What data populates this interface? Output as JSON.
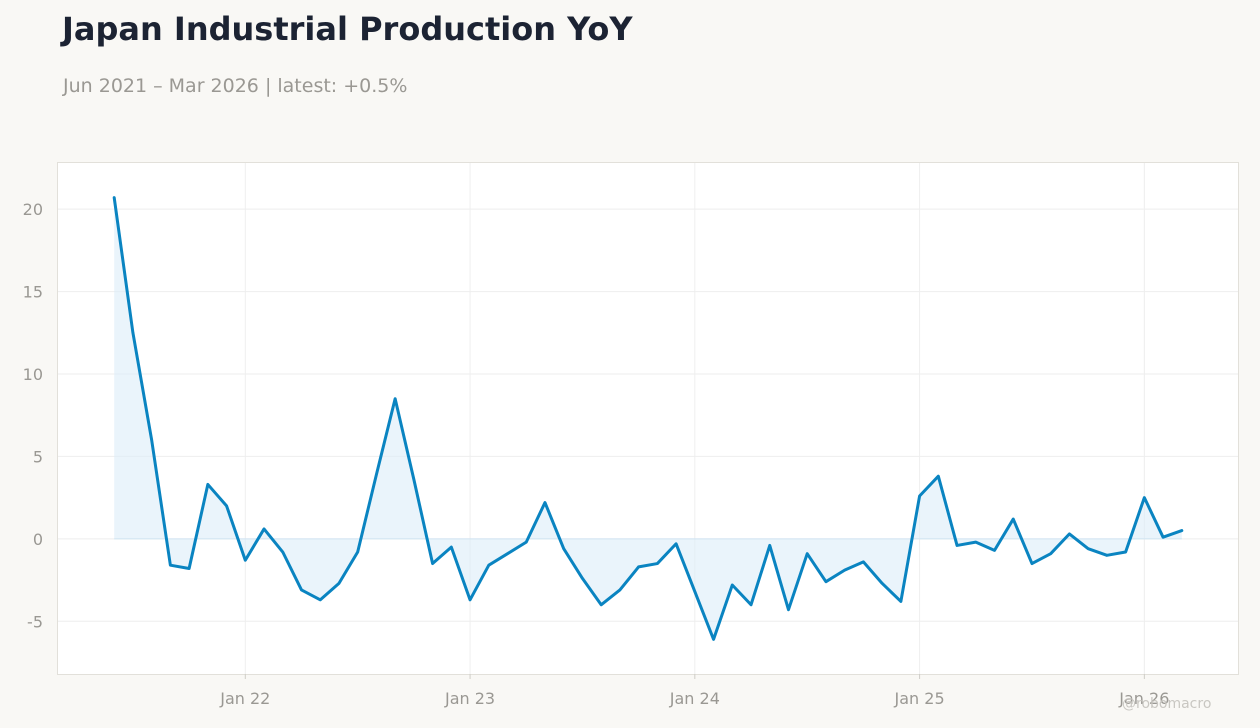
{
  "header": {
    "title": "Japan Industrial Production YoY",
    "subtitle": "Jun 2021 – Mar 2026 | latest: +0.5%"
  },
  "watermark": "@robomacro",
  "colors": {
    "background": "#f9f8f5",
    "line": "#0a84c1",
    "fill": "#dcedf8",
    "grid": "#eeeeee",
    "axis_text": "#9a9893"
  },
  "chart_data": {
    "type": "area",
    "title": "Japan Industrial Production YoY",
    "subtitle": "Jun 2021 – Mar 2026 | latest: +0.5%",
    "xlabel": "",
    "ylabel": "",
    "ylim": [
      -8.2,
      22.8
    ],
    "yticks": [
      -5,
      0,
      5,
      10,
      15,
      20
    ],
    "ytick_labels": [
      "-5",
      "0",
      "5",
      "10",
      "15",
      "20"
    ],
    "xlim": [
      "2021-03",
      "2026-06"
    ],
    "xticks": [
      "2022-01",
      "2023-01",
      "2024-01",
      "2025-01",
      "2026-01"
    ],
    "xtick_labels": [
      "Jan 22",
      "Jan 23",
      "Jan 24",
      "Jan 25",
      "Jan 26"
    ],
    "grid": true,
    "legend": "none",
    "series": [
      {
        "x": [
          "2021-06",
          "2021-07",
          "2021-08",
          "2021-09",
          "2021-10",
          "2021-11",
          "2021-12",
          "2022-01",
          "2022-02",
          "2022-03",
          "2022-04",
          "2022-05",
          "2022-06",
          "2022-07",
          "2022-08",
          "2022-09",
          "2022-10",
          "2022-11",
          "2022-12",
          "2023-01",
          "2023-02",
          "2023-03",
          "2023-04",
          "2023-05",
          "2023-06",
          "2023-07",
          "2023-08",
          "2023-09",
          "2023-10",
          "2023-11",
          "2023-12",
          "2024-01",
          "2024-02",
          "2024-03",
          "2024-04",
          "2024-05",
          "2024-06",
          "2024-07",
          "2024-08",
          "2024-09",
          "2024-10",
          "2024-11",
          "2024-12",
          "2025-01",
          "2025-02",
          "2025-03",
          "2025-04",
          "2025-05",
          "2025-06",
          "2025-07",
          "2025-08",
          "2025-09",
          "2025-10",
          "2025-11",
          "2025-12",
          "2026-01",
          "2026-02",
          "2026-03"
        ],
        "values": [
          20.7,
          12.5,
          6.0,
          -1.6,
          -1.8,
          3.3,
          2.0,
          -1.3,
          0.6,
          -0.8,
          -3.1,
          -3.7,
          -2.7,
          -0.8,
          3.9,
          8.5,
          3.6,
          -1.5,
          -0.5,
          -3.7,
          -1.6,
          -0.9,
          -0.2,
          2.2,
          -0.6,
          -2.4,
          -4.0,
          -3.1,
          -1.7,
          -1.5,
          -0.3,
          -3.2,
          -6.1,
          -2.8,
          -4.0,
          -0.4,
          -4.3,
          -0.9,
          -2.6,
          -1.9,
          -1.4,
          -2.7,
          -3.8,
          2.6,
          3.8,
          -0.4,
          -0.2,
          -0.7,
          1.2,
          -1.5,
          -0.9,
          0.3,
          -0.6,
          -1.0,
          -0.8,
          2.5,
          0.1,
          0.5
        ]
      }
    ]
  }
}
